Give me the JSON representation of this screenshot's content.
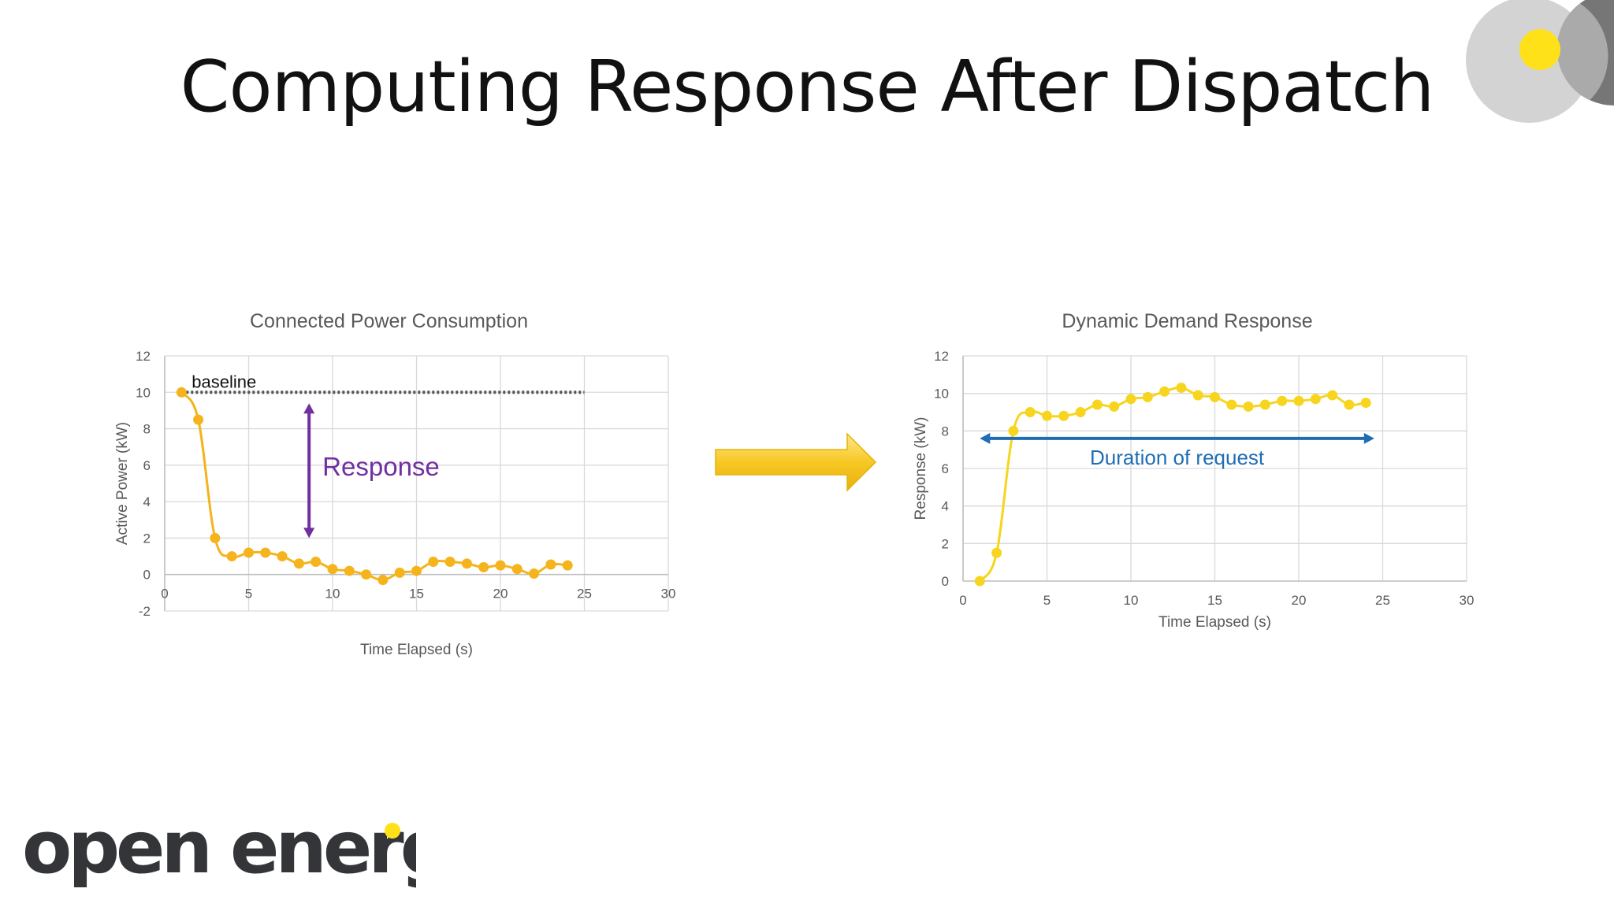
{
  "slide": {
    "title": "Computing Response After Dispatch",
    "logo_text": "open energi",
    "colors": {
      "brand_yellow": "#FFE11A",
      "logo_dark": "#333539",
      "left_series": "#F5B31C",
      "right_series": "#F7D51E",
      "response_arrow": "#7030A0",
      "duration_arrow": "#1F6DB5",
      "baseline": "#555555",
      "dispatch_arrow": "#F5C518"
    }
  },
  "chart_data": [
    {
      "type": "line",
      "title": "Connected Power Consumption",
      "xlabel": "Time Elapsed (s)",
      "ylabel": "Active Power (kW)",
      "xlim": [
        0,
        30
      ],
      "ylim": [
        -2,
        12
      ],
      "xticks": [
        0,
        5,
        10,
        15,
        20,
        25,
        30
      ],
      "yticks": [
        -2,
        0,
        2,
        4,
        6,
        8,
        10,
        12
      ],
      "grid": true,
      "series": [
        {
          "x": [
            1,
            2,
            3,
            4,
            5,
            6,
            7,
            8,
            9,
            10,
            11,
            12,
            13,
            14,
            15,
            16,
            17,
            18,
            19,
            20,
            21,
            22,
            23,
            24
          ],
          "values": [
            10,
            8.5,
            2.0,
            1.0,
            1.2,
            1.2,
            1.0,
            0.6,
            0.7,
            0.3,
            0.2,
            0.0,
            -0.3,
            0.1,
            0.2,
            0.7,
            0.7,
            0.6,
            0.4,
            0.5,
            0.3,
            0.05,
            0.55,
            0.5
          ]
        }
      ],
      "annotations": {
        "baseline_label": "baseline",
        "baseline_value": 10,
        "baseline_x": [
          1,
          25
        ],
        "response_label": "Response",
        "response_arrow_x": 8.6,
        "response_arrow_y": [
          10,
          2
        ]
      }
    },
    {
      "type": "line",
      "title": "Dynamic Demand Response",
      "xlabel": "Time Elapsed (s)",
      "ylabel": "Response (kW)",
      "xlim": [
        0,
        30
      ],
      "ylim": [
        0,
        12
      ],
      "xticks": [
        0,
        5,
        10,
        15,
        20,
        25,
        30
      ],
      "yticks": [
        0,
        2,
        4,
        6,
        8,
        10,
        12
      ],
      "grid": true,
      "series": [
        {
          "x": [
            1,
            2,
            3,
            4,
            5,
            6,
            7,
            8,
            9,
            10,
            11,
            12,
            13,
            14,
            15,
            16,
            17,
            18,
            19,
            20,
            21,
            22,
            23,
            24
          ],
          "values": [
            0,
            1.5,
            8.0,
            9.0,
            8.8,
            8.8,
            9.0,
            9.4,
            9.3,
            9.7,
            9.8,
            10.1,
            10.3,
            9.9,
            9.8,
            9.4,
            9.3,
            9.4,
            9.6,
            9.6,
            9.7,
            9.9,
            9.4,
            9.5
          ]
        }
      ],
      "annotations": {
        "duration_label": "Duration of request",
        "duration_arrow_x": [
          1,
          24.5
        ],
        "duration_arrow_y": 7.6
      }
    }
  ]
}
